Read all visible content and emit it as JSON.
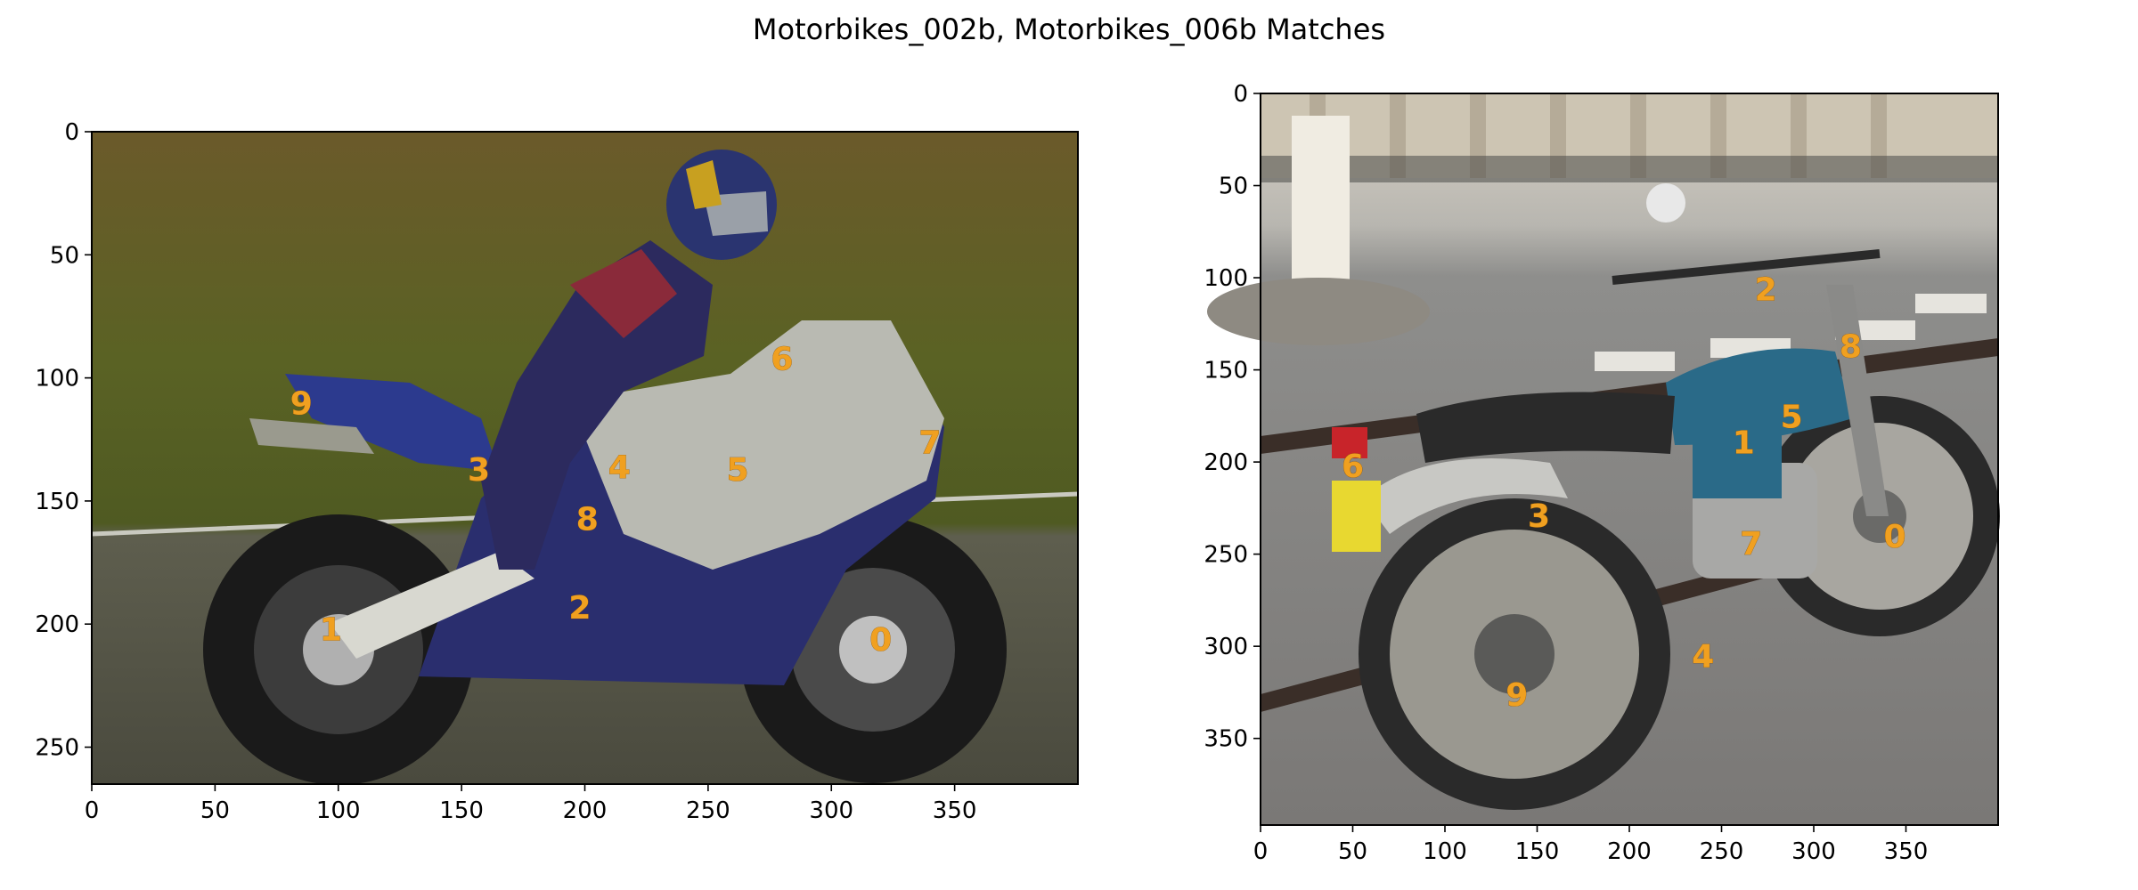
{
  "figure_title": "Motorbikes_002b, Motorbikes_006b Matches",
  "colors": {
    "keypoint_label": "#f0a020",
    "axis": "#000000"
  },
  "chart_data": [
    {
      "type": "scatter",
      "image_name": "Motorbikes_002b",
      "image_content": "sport-motorcycle-photo",
      "xlim": [
        0,
        400
      ],
      "ylim": [
        265,
        0
      ],
      "xticks": [
        0,
        50,
        100,
        150,
        200,
        250,
        300,
        350
      ],
      "yticks": [
        0,
        50,
        100,
        150,
        200,
        250
      ],
      "points": [
        {
          "label": "0",
          "x": 320,
          "y": 206
        },
        {
          "label": "1",
          "x": 97,
          "y": 202
        },
        {
          "label": "2",
          "x": 198,
          "y": 193
        },
        {
          "label": "3",
          "x": 157,
          "y": 137
        },
        {
          "label": "4",
          "x": 214,
          "y": 136
        },
        {
          "label": "5",
          "x": 262,
          "y": 137
        },
        {
          "label": "6",
          "x": 280,
          "y": 92
        },
        {
          "label": "7",
          "x": 340,
          "y": 126
        },
        {
          "label": "8",
          "x": 201,
          "y": 157
        },
        {
          "label": "9",
          "x": 85,
          "y": 110
        }
      ]
    },
    {
      "type": "scatter",
      "image_name": "Motorbikes_006b",
      "image_content": "trail-motorcycle-street-photo",
      "xlim": [
        0,
        400
      ],
      "ylim": [
        397,
        0
      ],
      "xticks": [
        0,
        50,
        100,
        150,
        200,
        250,
        300,
        350
      ],
      "yticks": [
        0,
        50,
        100,
        150,
        200,
        250,
        300,
        350
      ],
      "points": [
        {
          "label": "0",
          "x": 344,
          "y": 240
        },
        {
          "label": "1",
          "x": 262,
          "y": 189
        },
        {
          "label": "2",
          "x": 274,
          "y": 106
        },
        {
          "label": "3",
          "x": 151,
          "y": 229
        },
        {
          "label": "4",
          "x": 240,
          "y": 305
        },
        {
          "label": "5",
          "x": 288,
          "y": 175
        },
        {
          "label": "6",
          "x": 50,
          "y": 202
        },
        {
          "label": "7",
          "x": 266,
          "y": 244
        },
        {
          "label": "8",
          "x": 320,
          "y": 137
        },
        {
          "label": "9",
          "x": 139,
          "y": 326
        }
      ]
    }
  ]
}
